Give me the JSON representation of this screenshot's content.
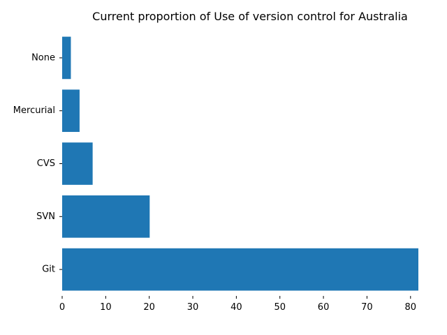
{
  "chart_data": {
    "type": "bar",
    "orientation": "horizontal",
    "title": "Current proportion of Use of version control for Australia",
    "xlabel": "",
    "ylabel": "",
    "categories": [
      "Git",
      "SVN",
      "CVS",
      "Mercurial",
      "None"
    ],
    "values": [
      81.8,
      20.1,
      7.0,
      4.0,
      2.0
    ],
    "xlim": [
      0,
      81.8
    ],
    "xticks": [
      0,
      10,
      20,
      30,
      40,
      50,
      60,
      70,
      80
    ],
    "grid": false,
    "legend": "none",
    "bar_color": "#1f77b4"
  }
}
